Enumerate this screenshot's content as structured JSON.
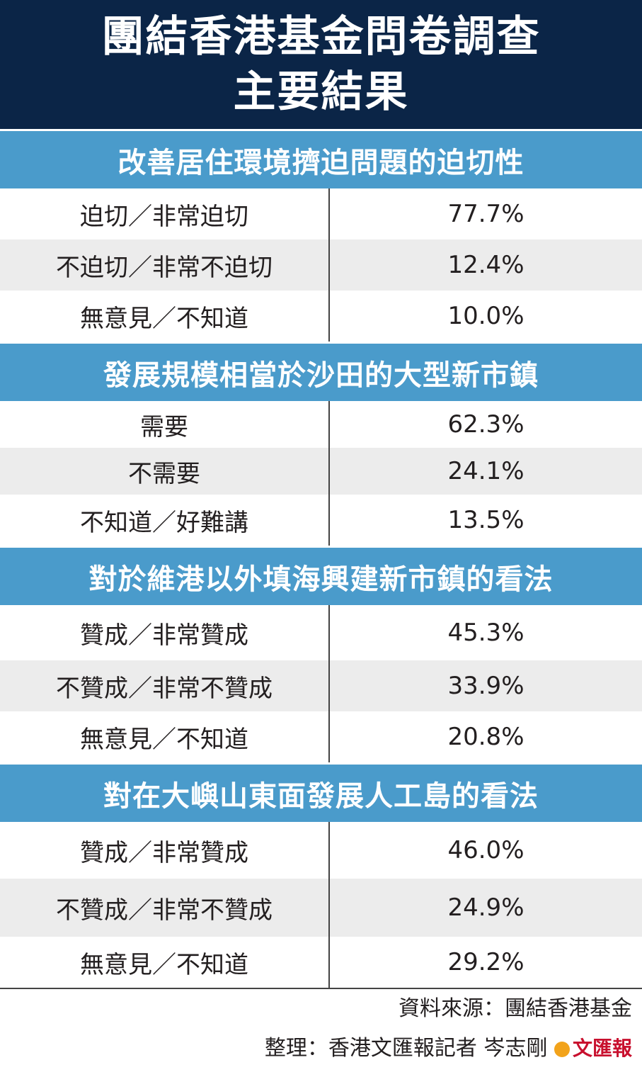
{
  "title": {
    "line1": "團結香港基金問卷調查",
    "line2": "主要結果"
  },
  "chart_data": {
    "type": "table",
    "title": "團結香港基金問卷調查 主要結果",
    "sections": [
      {
        "heading": "改善居住環境擠迫問題的迫切性",
        "rows": [
          {
            "label": "迫切／非常迫切",
            "value": "77.7%"
          },
          {
            "label": "不迫切／非常不迫切",
            "value": "12.4%"
          },
          {
            "label": "無意見／不知道",
            "value": "10.0%"
          }
        ]
      },
      {
        "heading": "發展規模相當於沙田的大型新市鎮",
        "rows": [
          {
            "label": "需要",
            "value": "62.3%"
          },
          {
            "label": "不需要",
            "value": "24.1%"
          },
          {
            "label": "不知道／好難講",
            "value": "13.5%"
          }
        ]
      },
      {
        "heading": "對於維港以外填海興建新市鎮的看法",
        "rows": [
          {
            "label": "贊成／非常贊成",
            "value": "45.3%"
          },
          {
            "label": "不贊成／非常不贊成",
            "value": "33.9%"
          },
          {
            "label": "無意見／不知道",
            "value": "20.8%"
          }
        ]
      },
      {
        "heading": "對在大嶼山東面發展人工島的看法",
        "rows": [
          {
            "label": "贊成／非常贊成",
            "value": "46.0%"
          },
          {
            "label": "不贊成／非常不贊成",
            "value": "24.9%"
          },
          {
            "label": "無意見／不知道",
            "value": "29.2%"
          }
        ]
      }
    ]
  },
  "footer": {
    "source": "資料來源：團結香港基金",
    "credit": "整理：香港文匯報記者 岑志剛",
    "stamp": "文匯報"
  },
  "colors": {
    "title_bg": "#0b2547",
    "section_bg": "#4a9bcb",
    "alt_row": "#ececec"
  }
}
